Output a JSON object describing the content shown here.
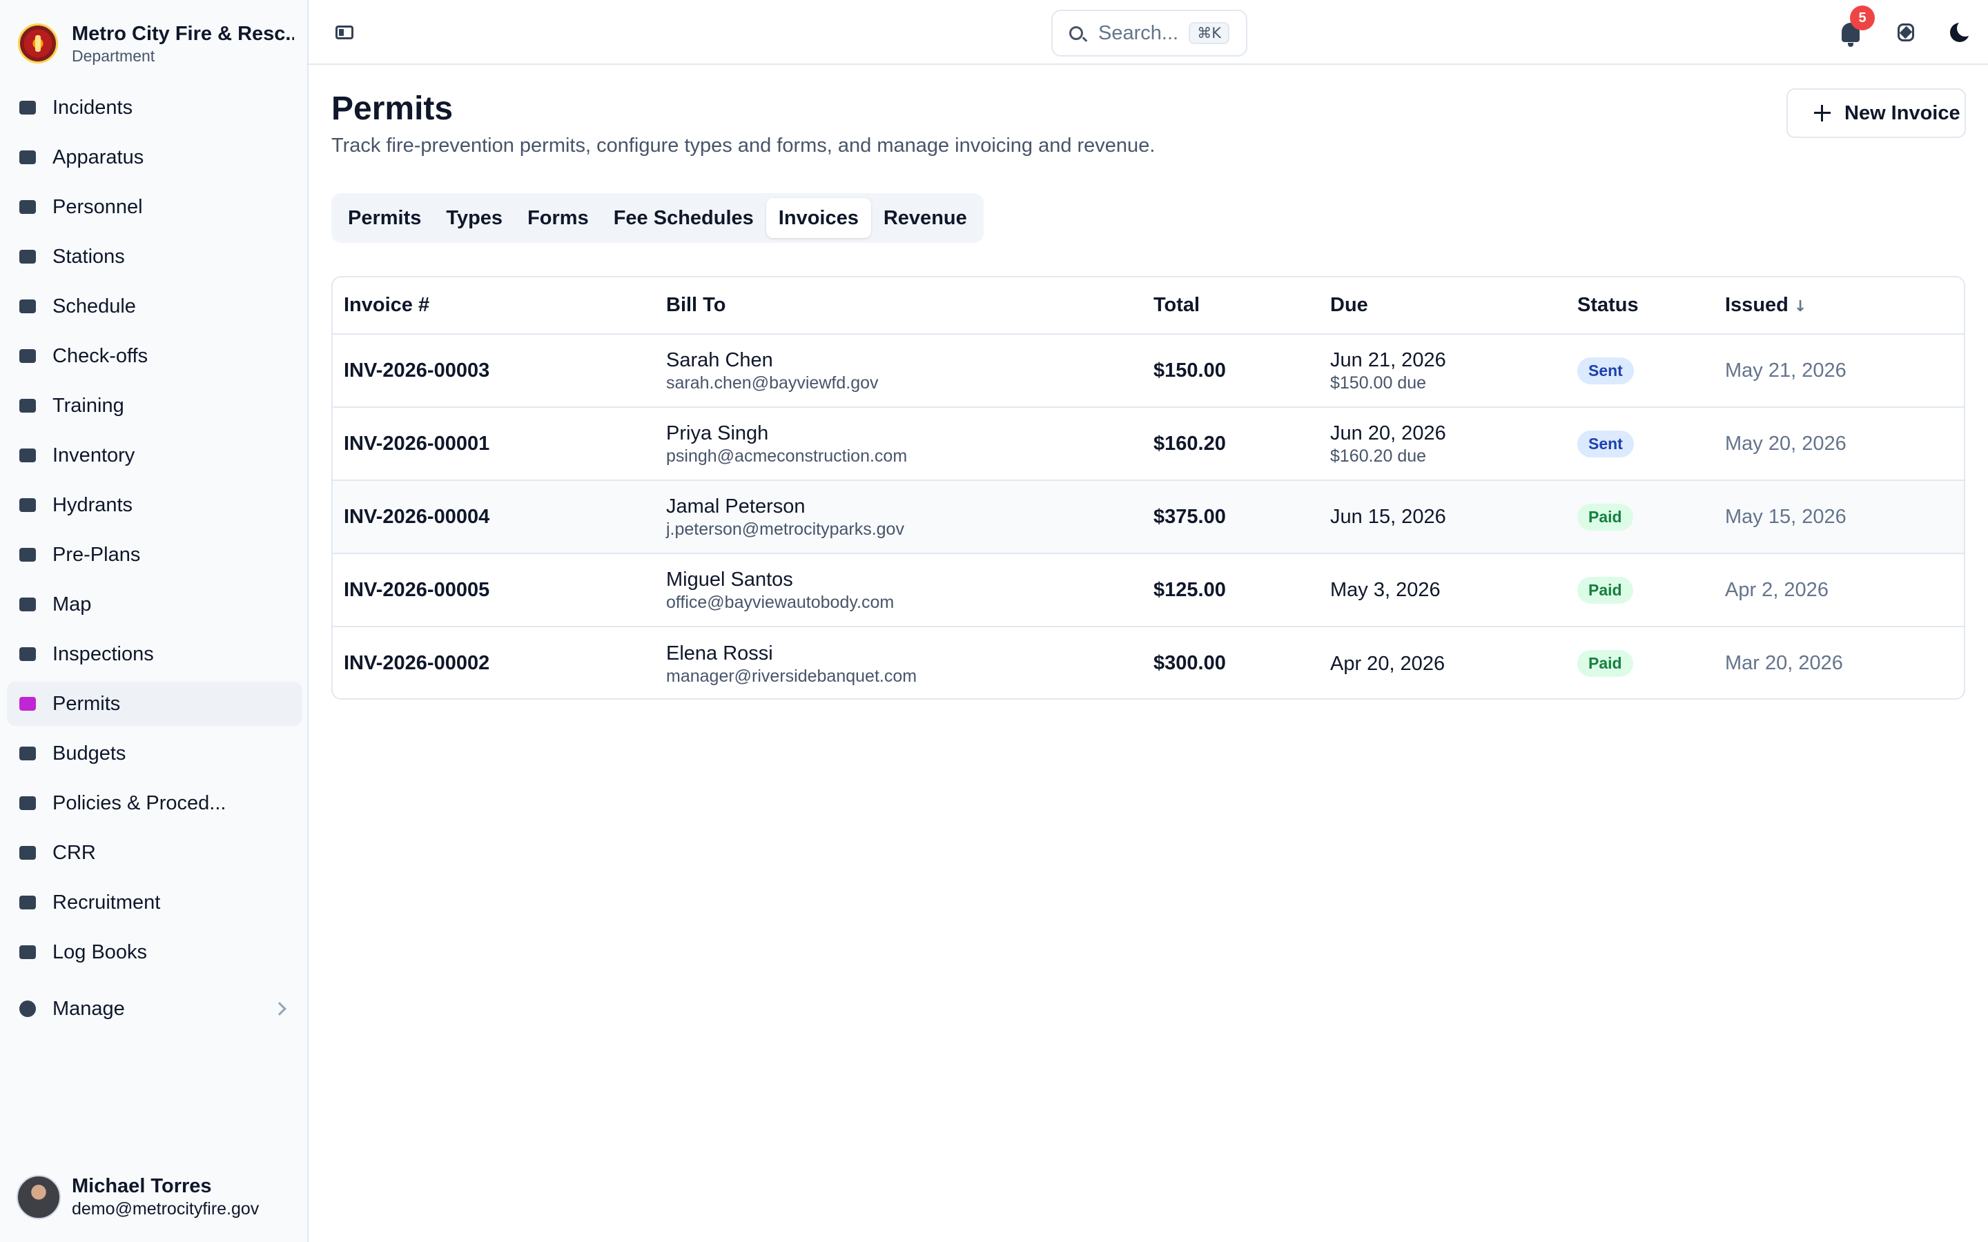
{
  "org": {
    "name": "Metro City Fire & Resc...",
    "subtitle": "Department"
  },
  "sidebar": {
    "items": [
      {
        "label": "Incidents",
        "icon": "siren-icon"
      },
      {
        "label": "Apparatus",
        "icon": "fire-truck-icon"
      },
      {
        "label": "Personnel",
        "icon": "id-card-icon"
      },
      {
        "label": "Stations",
        "icon": "building-icon"
      },
      {
        "label": "Schedule",
        "icon": "calendar-icon"
      },
      {
        "label": "Check-offs",
        "icon": "clipboard-check-icon"
      },
      {
        "label": "Training",
        "icon": "graduation-cap-icon"
      },
      {
        "label": "Inventory",
        "icon": "hammer-icon"
      },
      {
        "label": "Hydrants",
        "icon": "hydrant-icon"
      },
      {
        "label": "Pre-Plans",
        "icon": "floor-plan-icon"
      },
      {
        "label": "Map",
        "icon": "map-icon"
      },
      {
        "label": "Inspections",
        "icon": "checklist-icon"
      },
      {
        "label": "Permits",
        "icon": "permit-icon"
      },
      {
        "label": "Budgets",
        "icon": "money-bag-icon"
      },
      {
        "label": "Policies & Proced...",
        "icon": "book-icon"
      },
      {
        "label": "CRR",
        "icon": "megaphone-icon"
      },
      {
        "label": "Recruitment",
        "icon": "handshake-icon"
      },
      {
        "label": "Log Books",
        "icon": "books-icon"
      }
    ],
    "active": "Permits",
    "manage_label": "Manage"
  },
  "user": {
    "name": "Michael Torres",
    "email": "demo@metrocityfire.gov"
  },
  "topbar": {
    "search_placeholder": "Search...",
    "search_shortcut": "⌘K",
    "notification_count": "5"
  },
  "page": {
    "title": "Permits",
    "description": "Track fire-prevention permits, configure types and forms, and manage invoicing and revenue.",
    "new_button_label": "New Invoice"
  },
  "tabs": [
    "Permits",
    "Types",
    "Forms",
    "Fee Schedules",
    "Invoices",
    "Revenue"
  ],
  "active_tab": "Invoices",
  "table": {
    "headers": [
      "Invoice #",
      "Bill To",
      "Total",
      "Due",
      "Status",
      "Issued"
    ],
    "rows": [
      {
        "invoice": "INV-2026-00003",
        "name": "Sarah Chen",
        "email": "sarah.chen@bayviewfd.gov",
        "total": "$150.00",
        "due": "Jun 21, 2026",
        "due_note": "$150.00 due",
        "status": "Sent",
        "issued": "May 21, 2026"
      },
      {
        "invoice": "INV-2026-00001",
        "name": "Priya Singh",
        "email": "psingh@acmeconstruction.com",
        "total": "$160.20",
        "due": "Jun 20, 2026",
        "due_note": "$160.20 due",
        "status": "Sent",
        "issued": "May 20, 2026"
      },
      {
        "invoice": "INV-2026-00004",
        "name": "Jamal Peterson",
        "email": "j.peterson@metrocityparks.gov",
        "total": "$375.00",
        "due": "Jun 15, 2026",
        "due_note": "",
        "status": "Paid",
        "issued": "May 15, 2026"
      },
      {
        "invoice": "INV-2026-00005",
        "name": "Miguel Santos",
        "email": "office@bayviewautobody.com",
        "total": "$125.00",
        "due": "May 3, 2026",
        "due_note": "",
        "status": "Paid",
        "issued": "Apr 2, 2026"
      },
      {
        "invoice": "INV-2026-00002",
        "name": "Elena Rossi",
        "email": "manager@riversidebanquet.com",
        "total": "$300.00",
        "due": "Apr 20, 2026",
        "due_note": "",
        "status": "Paid",
        "issued": "Mar 20, 2026"
      }
    ]
  },
  "colors": {
    "accent": "#c026d3",
    "sent_bg": "#dbeafe",
    "paid_bg": "#dcfce7",
    "badge": "#ef4444"
  }
}
